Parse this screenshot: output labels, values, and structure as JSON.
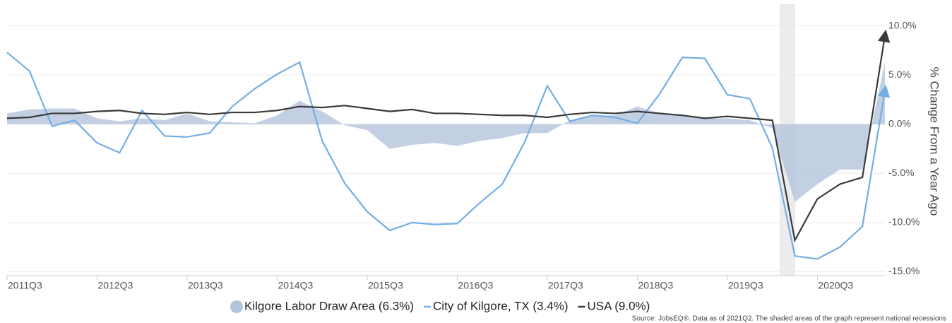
{
  "chart_data": {
    "type": "line",
    "categories": [
      "2011Q3",
      null,
      null,
      null,
      "2012Q3",
      null,
      null,
      null,
      "2013Q3",
      null,
      null,
      null,
      "2014Q3",
      null,
      null,
      null,
      "2015Q3",
      null,
      null,
      null,
      "2016Q3",
      null,
      null,
      null,
      "2017Q3",
      null,
      null,
      null,
      "2018Q3",
      null,
      null,
      null,
      "2019Q3",
      null,
      null,
      null,
      "2020Q3",
      null,
      null,
      null
    ],
    "series": [
      {
        "name": "Kilgore Labor Draw Area (6.3%)",
        "kind": "area",
        "color": "#b4c4dc",
        "values": [
          1.1,
          1.5,
          1.6,
          1.6,
          0.6,
          0.3,
          0.6,
          0.4,
          1.1,
          0.3,
          0.2,
          0.1,
          0.9,
          2.4,
          1.3,
          -0.1,
          -0.6,
          -2.5,
          -2.1,
          -1.9,
          -2.2,
          -1.7,
          -1.4,
          -0.9,
          -0.9,
          0.4,
          0.9,
          0.9,
          1.8,
          1.1,
          0.9,
          0.6,
          0.6,
          0.4,
          -0.4,
          -7.9,
          -6.1,
          -4.6,
          -4.6,
          6.3
        ]
      },
      {
        "name": "City of Kilgore, TX (3.4%)",
        "kind": "line",
        "color": "#74aee4",
        "values": [
          7.3,
          5.4,
          -0.2,
          0.4,
          -1.9,
          -2.9,
          1.4,
          -1.2,
          -1.3,
          -0.9,
          1.8,
          3.6,
          5.1,
          6.3,
          -1.7,
          -6.0,
          -8.9,
          -10.8,
          -10.0,
          -10.2,
          -10.1,
          -8.0,
          -6.1,
          -1.8,
          3.9,
          0.3,
          0.9,
          0.7,
          0.1,
          3.1,
          6.8,
          6.7,
          3.0,
          2.6,
          -2.4,
          -13.4,
          -13.7,
          -12.5,
          -10.4,
          3.4
        ]
      },
      {
        "name": "USA (9.0%)",
        "kind": "line",
        "color": "#3a3a3a",
        "values": [
          0.6,
          0.7,
          1.1,
          1.1,
          1.3,
          1.4,
          1.1,
          1.0,
          1.2,
          1.0,
          1.2,
          1.2,
          1.4,
          1.8,
          1.7,
          1.9,
          1.6,
          1.3,
          1.5,
          1.1,
          1.1,
          1.0,
          0.9,
          0.9,
          0.7,
          1.0,
          1.2,
          1.1,
          1.3,
          1.1,
          0.9,
          0.6,
          0.8,
          0.6,
          0.4,
          -11.8,
          -7.6,
          -6.1,
          -5.4,
          9.0
        ]
      }
    ],
    "ylabel": "% Change From a Year Ago",
    "ylim": [
      -15.4,
      12.2
    ],
    "yticks": [
      {
        "value": 10,
        "label": "10.0%"
      },
      {
        "value": 5,
        "label": "5.0%"
      },
      {
        "value": 0,
        "label": "0.0%"
      },
      {
        "value": -5,
        "label": "-5.0%"
      },
      {
        "value": -10,
        "label": "-10.0%"
      },
      {
        "value": -15,
        "label": "-15.0%"
      }
    ],
    "grid": true,
    "source": "Source: JobsEQ®. Data as of 2021Q2. The shaded areas of the graph represent national recessions"
  }
}
